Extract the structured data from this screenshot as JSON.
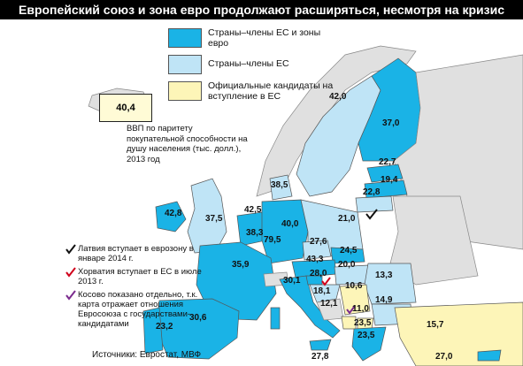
{
  "title": "Европейский союз и зона евро продолжают расширяться, несмотря на кризис",
  "legend": [
    {
      "label": "Страны–члены ЕС и зоны евро",
      "color": "#1ab3e6"
    },
    {
      "label": "Страны–члены ЕС",
      "color": "#bfe4f6"
    },
    {
      "label": "Официальные кандидаты на вступление в ЕС",
      "color": "#fdf5b8"
    }
  ],
  "colors": {
    "eurozone": "#1ab3e6",
    "eu": "#bfe4f6",
    "candidate": "#fdf5b8",
    "other": "#e0e0e0",
    "sea": "#ffffff",
    "check_black": "#111111",
    "check_red": "#d0021b",
    "check_purple": "#7b2b8e"
  },
  "iceland_value": "40,4",
  "callout_text": "ВВП по паритету покупательной способности на душу населения (тыс. долл.), 2013 год",
  "notes": [
    {
      "text": "Латвия вступает в еврозону в январе 2014 г.",
      "icon": "black-check-icon"
    },
    {
      "text": "Хорватия вступает в ЕС в июле 2013 г.",
      "icon": "red-check-icon"
    },
    {
      "text": "Косово показано отдельно, т.к. карта отражает отношения Евросоюза с государствами-кандидатами",
      "icon": "purple-check-icon"
    }
  ],
  "source": "Источники: Евростат, МВФ",
  "values": {
    "sweden": "42,0",
    "finland": "37,0",
    "estonia": "22,7",
    "latvia": "19,4",
    "lithuania": "22,8",
    "denmark": "38,5",
    "ireland": "42,8",
    "uk": "37,5",
    "netherlands": "42,5",
    "belgium": "38,3",
    "luxembourg": "79,5",
    "germany": "40,0",
    "poland": "21,0",
    "czech": "27,6",
    "slovakia": "24,5",
    "austria": "43,3",
    "hungary": "20,0",
    "slovenia": "28,0",
    "france": "35,9",
    "switzerland_area": "30,1",
    "croatia": "18,1",
    "romania": "13,3",
    "serbia": "10,6",
    "bosnia": "12,1",
    "montenegro": "11,0",
    "bulgaria": "14,9",
    "macedonia": "23,5",
    "greece": "23,5",
    "turkey": "15,7",
    "spain": "30,6",
    "portugal": "23,2",
    "italy_south": "27,8",
    "cyprus": "27,0"
  }
}
